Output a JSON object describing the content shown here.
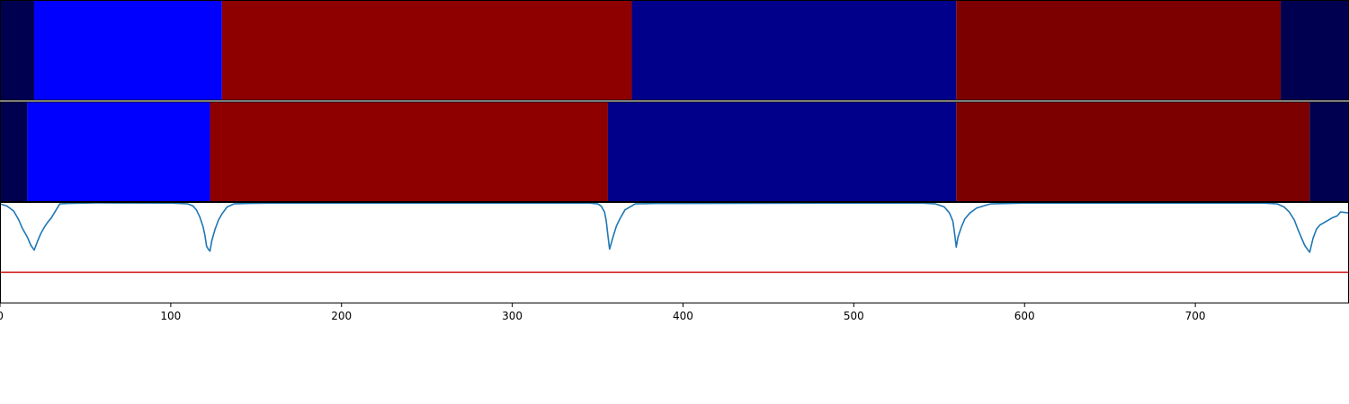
{
  "chart_data": [
    {
      "type": "heatmap",
      "title": "",
      "xlim": [
        0,
        790
      ],
      "segments": [
        {
          "start": 0,
          "end": 20,
          "color": "#000050"
        },
        {
          "start": 20,
          "end": 130,
          "color": "#0000ff"
        },
        {
          "start": 130,
          "end": 370,
          "color": "#8e0000"
        },
        {
          "start": 370,
          "end": 560,
          "color": "#00008b"
        },
        {
          "start": 560,
          "end": 750,
          "color": "#7d0000"
        },
        {
          "start": 750,
          "end": 790,
          "color": "#000050"
        }
      ]
    },
    {
      "type": "heatmap",
      "title": "",
      "xlim": [
        0,
        790
      ],
      "segments": [
        {
          "start": 0,
          "end": 16,
          "color": "#000050"
        },
        {
          "start": 16,
          "end": 123,
          "color": "#0000ff"
        },
        {
          "start": 123,
          "end": 356,
          "color": "#8e0000"
        },
        {
          "start": 356,
          "end": 560,
          "color": "#00008b"
        },
        {
          "start": 560,
          "end": 767,
          "color": "#7d0000"
        },
        {
          "start": 767,
          "end": 790,
          "color": "#000050"
        }
      ]
    },
    {
      "type": "line",
      "title": "",
      "xlabel": "",
      "ylabel": "",
      "xlim": [
        0,
        790
      ],
      "ylim": [
        0,
        1
      ],
      "xticks": [
        0,
        100,
        200,
        300,
        400,
        500,
        600,
        700
      ],
      "series": [
        {
          "color": "#1f77b4",
          "x": [
            0,
            4,
            8,
            11,
            13,
            16,
            18,
            20,
            22,
            24,
            26,
            28,
            30,
            35,
            40,
            50,
            56,
            100,
            105,
            110,
            113,
            115,
            117,
            119,
            120,
            121,
            122,
            123,
            124,
            126,
            128,
            130,
            133,
            137,
            145,
            160,
            345,
            350,
            352,
            354,
            355,
            356,
            357,
            359,
            361,
            363,
            366,
            372,
            385,
            540,
            548,
            553,
            556,
            558,
            559,
            560,
            561,
            563,
            565,
            568,
            572,
            580,
            600,
            740,
            748,
            752,
            755,
            758,
            760,
            762,
            764,
            766,
            767,
            768,
            769,
            771,
            773,
            775,
            777,
            780,
            783,
            785,
            790
          ],
          "y": [
            0.99,
            0.97,
            0.92,
            0.83,
            0.75,
            0.66,
            0.58,
            0.53,
            0.62,
            0.7,
            0.76,
            0.81,
            0.85,
            0.99,
            0.995,
            0.998,
            1.0,
            0.998,
            0.995,
            0.99,
            0.97,
            0.93,
            0.86,
            0.76,
            0.68,
            0.57,
            0.54,
            0.52,
            0.62,
            0.74,
            0.83,
            0.89,
            0.96,
            0.99,
            0.995,
            0.998,
            0.998,
            0.99,
            0.97,
            0.91,
            0.82,
            0.68,
            0.54,
            0.66,
            0.77,
            0.84,
            0.93,
            0.99,
            0.995,
            0.998,
            0.99,
            0.96,
            0.9,
            0.82,
            0.7,
            0.56,
            0.66,
            0.76,
            0.84,
            0.9,
            0.95,
            0.99,
            0.998,
            0.998,
            0.99,
            0.96,
            0.91,
            0.83,
            0.74,
            0.66,
            0.58,
            0.53,
            0.51,
            0.58,
            0.65,
            0.74,
            0.78,
            0.8,
            0.82,
            0.85,
            0.87,
            0.91,
            0.9
          ]
        },
        {
          "color": "#d62728",
          "x": [
            0,
            790
          ],
          "y": [
            0.31,
            0.31
          ]
        }
      ]
    }
  ]
}
